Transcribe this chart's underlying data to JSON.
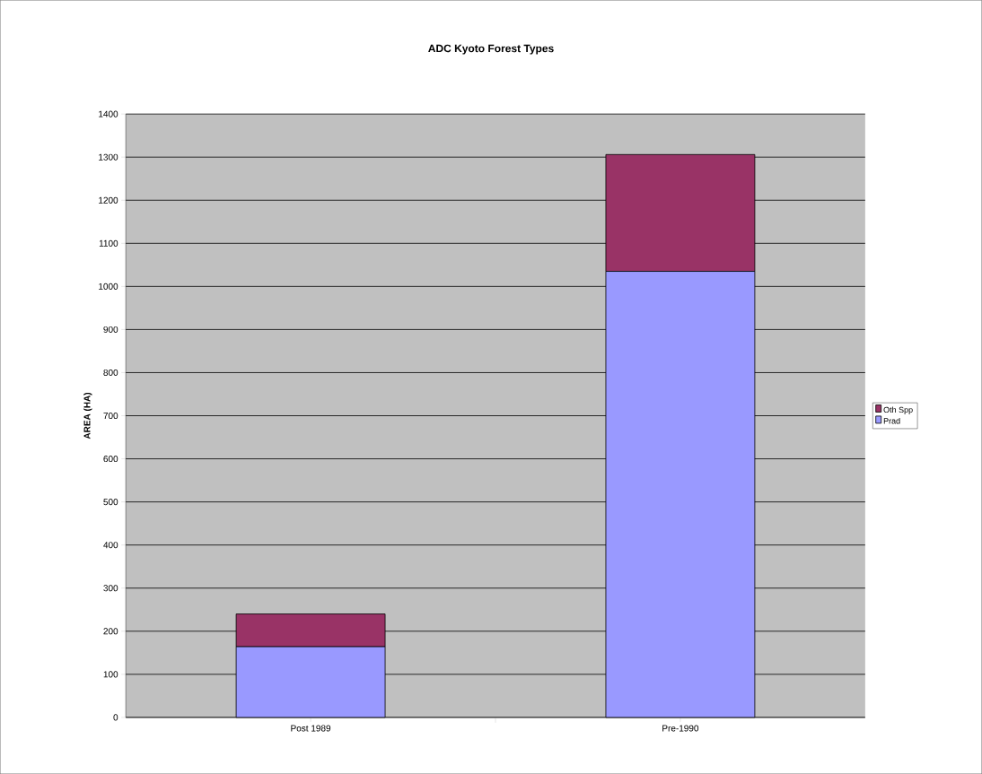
{
  "chart_data": {
    "type": "bar",
    "title": "ADC Kyoto Forest Types",
    "ylabel": "AREA (HA)",
    "categories": [
      "Post 1989",
      "Pre-1990"
    ],
    "stacked": true,
    "series": [
      {
        "name": "Prad",
        "color": "#9999ff",
        "values": [
          164,
          1035
        ]
      },
      {
        "name": "Oth Spp",
        "color": "#993366",
        "values": [
          76,
          271
        ]
      }
    ],
    "ylim": [
      0,
      1400
    ],
    "yticks": [
      0,
      100,
      200,
      300,
      400,
      500,
      600,
      700,
      800,
      900,
      1000,
      1100,
      1200,
      1300,
      1400
    ],
    "grid": "y",
    "legend": "right"
  }
}
